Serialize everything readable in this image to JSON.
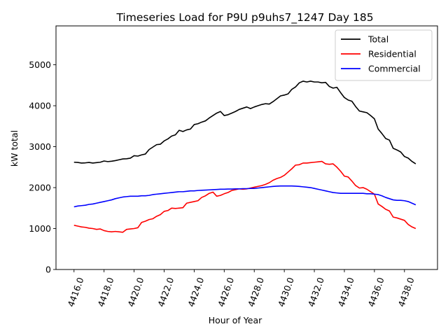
{
  "chart_data": {
    "type": "line",
    "title": "Timeseries Load for P9U p9uhs7_1247  Day 185",
    "xlabel": "Hour of Year",
    "ylabel": "kW total",
    "xlim": [
      4414.8,
      4440.2
    ],
    "ylim": [
      0,
      5950
    ],
    "x_ticks": [
      4416,
      4418,
      4420,
      4422,
      4424,
      4426,
      4428,
      4430,
      4432,
      4434,
      4436,
      4438
    ],
    "x_tick_labels": [
      "4416.0",
      "4418.0",
      "4420.0",
      "4422.0",
      "4424.0",
      "4426.0",
      "4428.0",
      "4430.0",
      "4432.0",
      "4434.0",
      "4436.0",
      "4438.0"
    ],
    "y_ticks": [
      0,
      1000,
      2000,
      3000,
      4000,
      5000
    ],
    "y_tick_labels": [
      "0",
      "1000",
      "2000",
      "3000",
      "4000",
      "5000"
    ],
    "legend_position": "top-right",
    "x_start": 4416.0,
    "x_step": 0.25,
    "series": [
      {
        "name": "Total",
        "color": "#000000",
        "values": [
          2620,
          2615,
          2600,
          2605,
          2615,
          2600,
          2610,
          2620,
          2650,
          2635,
          2645,
          2660,
          2680,
          2700,
          2705,
          2720,
          2780,
          2770,
          2800,
          2820,
          2930,
          2990,
          3050,
          3060,
          3140,
          3190,
          3260,
          3290,
          3400,
          3370,
          3410,
          3430,
          3540,
          3560,
          3600,
          3630,
          3700,
          3760,
          3820,
          3860,
          3760,
          3780,
          3820,
          3860,
          3910,
          3940,
          3970,
          3930,
          3970,
          4000,
          4030,
          4050,
          4040,
          4100,
          4170,
          4240,
          4260,
          4290,
          4400,
          4460,
          4560,
          4600,
          4580,
          4600,
          4580,
          4580,
          4560,
          4570,
          4470,
          4430,
          4450,
          4320,
          4200,
          4140,
          4110,
          3980,
          3870,
          3850,
          3830,
          3760,
          3680,
          3430,
          3320,
          3200,
          3160,
          2960,
          2920,
          2870,
          2760,
          2720,
          2640,
          2580
        ]
      },
      {
        "name": "Residential",
        "color": "#ff0000",
        "values": [
          1080,
          1060,
          1040,
          1030,
          1010,
          1000,
          980,
          990,
          950,
          930,
          920,
          930,
          920,
          910,
          980,
          990,
          1000,
          1020,
          1150,
          1180,
          1220,
          1240,
          1300,
          1340,
          1420,
          1440,
          1500,
          1490,
          1500,
          1510,
          1620,
          1640,
          1660,
          1680,
          1760,
          1800,
          1860,
          1890,
          1790,
          1810,
          1850,
          1880,
          1930,
          1950,
          1970,
          1960,
          1970,
          1990,
          2010,
          2030,
          2050,
          2080,
          2120,
          2180,
          2220,
          2250,
          2300,
          2380,
          2460,
          2550,
          2560,
          2600,
          2600,
          2610,
          2620,
          2630,
          2640,
          2580,
          2570,
          2580,
          2500,
          2400,
          2280,
          2260,
          2160,
          2050,
          1990,
          2000,
          1960,
          1900,
          1840,
          1600,
          1540,
          1470,
          1430,
          1280,
          1260,
          1230,
          1200,
          1100,
          1040,
          1000
        ]
      },
      {
        "name": "Commercial",
        "color": "#0000ff",
        "values": [
          1530,
          1550,
          1560,
          1570,
          1590,
          1600,
          1620,
          1640,
          1660,
          1680,
          1700,
          1730,
          1750,
          1770,
          1780,
          1790,
          1790,
          1790,
          1800,
          1800,
          1810,
          1830,
          1840,
          1850,
          1860,
          1870,
          1880,
          1890,
          1900,
          1900,
          1910,
          1920,
          1920,
          1930,
          1935,
          1940,
          1945,
          1950,
          1955,
          1960,
          1960,
          1965,
          1965,
          1970,
          1970,
          1975,
          1975,
          1980,
          1980,
          1990,
          2000,
          2010,
          2020,
          2030,
          2035,
          2040,
          2040,
          2040,
          2040,
          2035,
          2030,
          2020,
          2010,
          2000,
          1980,
          1960,
          1940,
          1920,
          1900,
          1880,
          1870,
          1860,
          1860,
          1860,
          1860,
          1860,
          1860,
          1860,
          1850,
          1850,
          1840,
          1830,
          1800,
          1760,
          1730,
          1700,
          1690,
          1690,
          1680,
          1660,
          1620,
          1580
        ]
      }
    ]
  }
}
